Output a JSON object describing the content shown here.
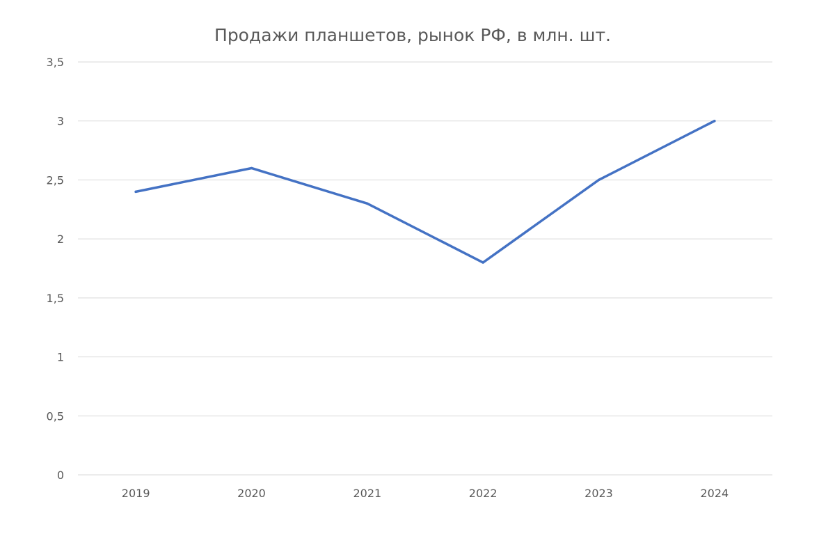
{
  "chart_data": {
    "type": "line",
    "title": "Продажи планшетов, рынок РФ, в млн. шт.",
    "xlabel": "",
    "ylabel": "",
    "categories": [
      "2019",
      "2020",
      "2021",
      "2022",
      "2023",
      "2024"
    ],
    "series": [
      {
        "values": [
          2.4,
          2.6,
          2.3,
          1.8,
          2.5,
          3.0
        ],
        "color": "#4472c4"
      }
    ],
    "ylim": [
      0,
      3.5
    ],
    "y_ticks": [
      0,
      0.5,
      1,
      1.5,
      2,
      2.5,
      3,
      3.5
    ],
    "y_tick_labels": [
      "0",
      "0,5",
      "1",
      "1,5",
      "2",
      "2,5",
      "3",
      "3,5"
    ],
    "grid": true,
    "legend": "none"
  }
}
